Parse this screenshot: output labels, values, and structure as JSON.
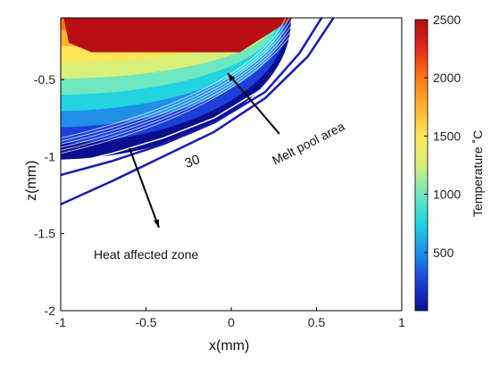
{
  "chart_data": {
    "type": "heatmap",
    "title": "",
    "xlabel": "x(mm)",
    "ylabel": "z(mm)",
    "xlim": [
      -1,
      1
    ],
    "ylim": [
      -2,
      -0.1
    ],
    "xticks": [
      "-1",
      "-0.5",
      "0",
      "0.5",
      "1"
    ],
    "yticks": [
      "-0.5",
      "-1",
      "-1.5",
      "-2"
    ],
    "colorbar": {
      "label": "Temperature ˚C",
      "range": [
        0,
        2500
      ],
      "ticks": [
        "500",
        "1000",
        "1500",
        "2000",
        "2500"
      ]
    },
    "contour_label": "30",
    "annotations": {
      "melt_pool": "Melt pool area",
      "heat_affected": "Heat affected zone"
    },
    "field": {
      "center_x": 0,
      "center_z": -0.1,
      "boundary_radius_x": [
        0.35,
        0.15
      ],
      "boundary_radius_z": [
        0.9,
        -0.15
      ],
      "melt_pool_depth": -0.32,
      "melt_pool_right_x": 0.05,
      "colors": [
        "#0b0f8f",
        "#1b3fd8",
        "#1f8fe8",
        "#22d3e0",
        "#6fe8c0",
        "#d8f07a",
        "#ffe55a",
        "#ffb52c",
        "#ff7a14",
        "#e5271b",
        "#b20f14"
      ]
    },
    "outer_contours": [
      {
        "label": "30",
        "points_x": [
          -1.0,
          -0.7,
          -0.4,
          -0.1,
          0.2,
          0.45,
          0.6
        ],
        "points_z": [
          -1.31,
          -1.16,
          -1.0,
          -0.84,
          -0.62,
          -0.35,
          -0.1
        ]
      },
      {
        "label": "",
        "points_x": [
          -1.0,
          -0.7,
          -0.4,
          -0.1,
          0.2,
          0.4,
          0.53
        ],
        "points_z": [
          -1.12,
          -1.03,
          -0.92,
          -0.78,
          -0.58,
          -0.33,
          -0.1
        ]
      },
      {
        "label": "",
        "points_x": [
          -1.0,
          -0.7,
          -0.4,
          -0.1,
          0.2,
          0.38,
          0.5
        ],
        "points_z": [
          -1.06,
          -0.98,
          -0.88,
          -0.75,
          -0.55,
          -0.32,
          -0.1
        ]
      }
    ]
  }
}
